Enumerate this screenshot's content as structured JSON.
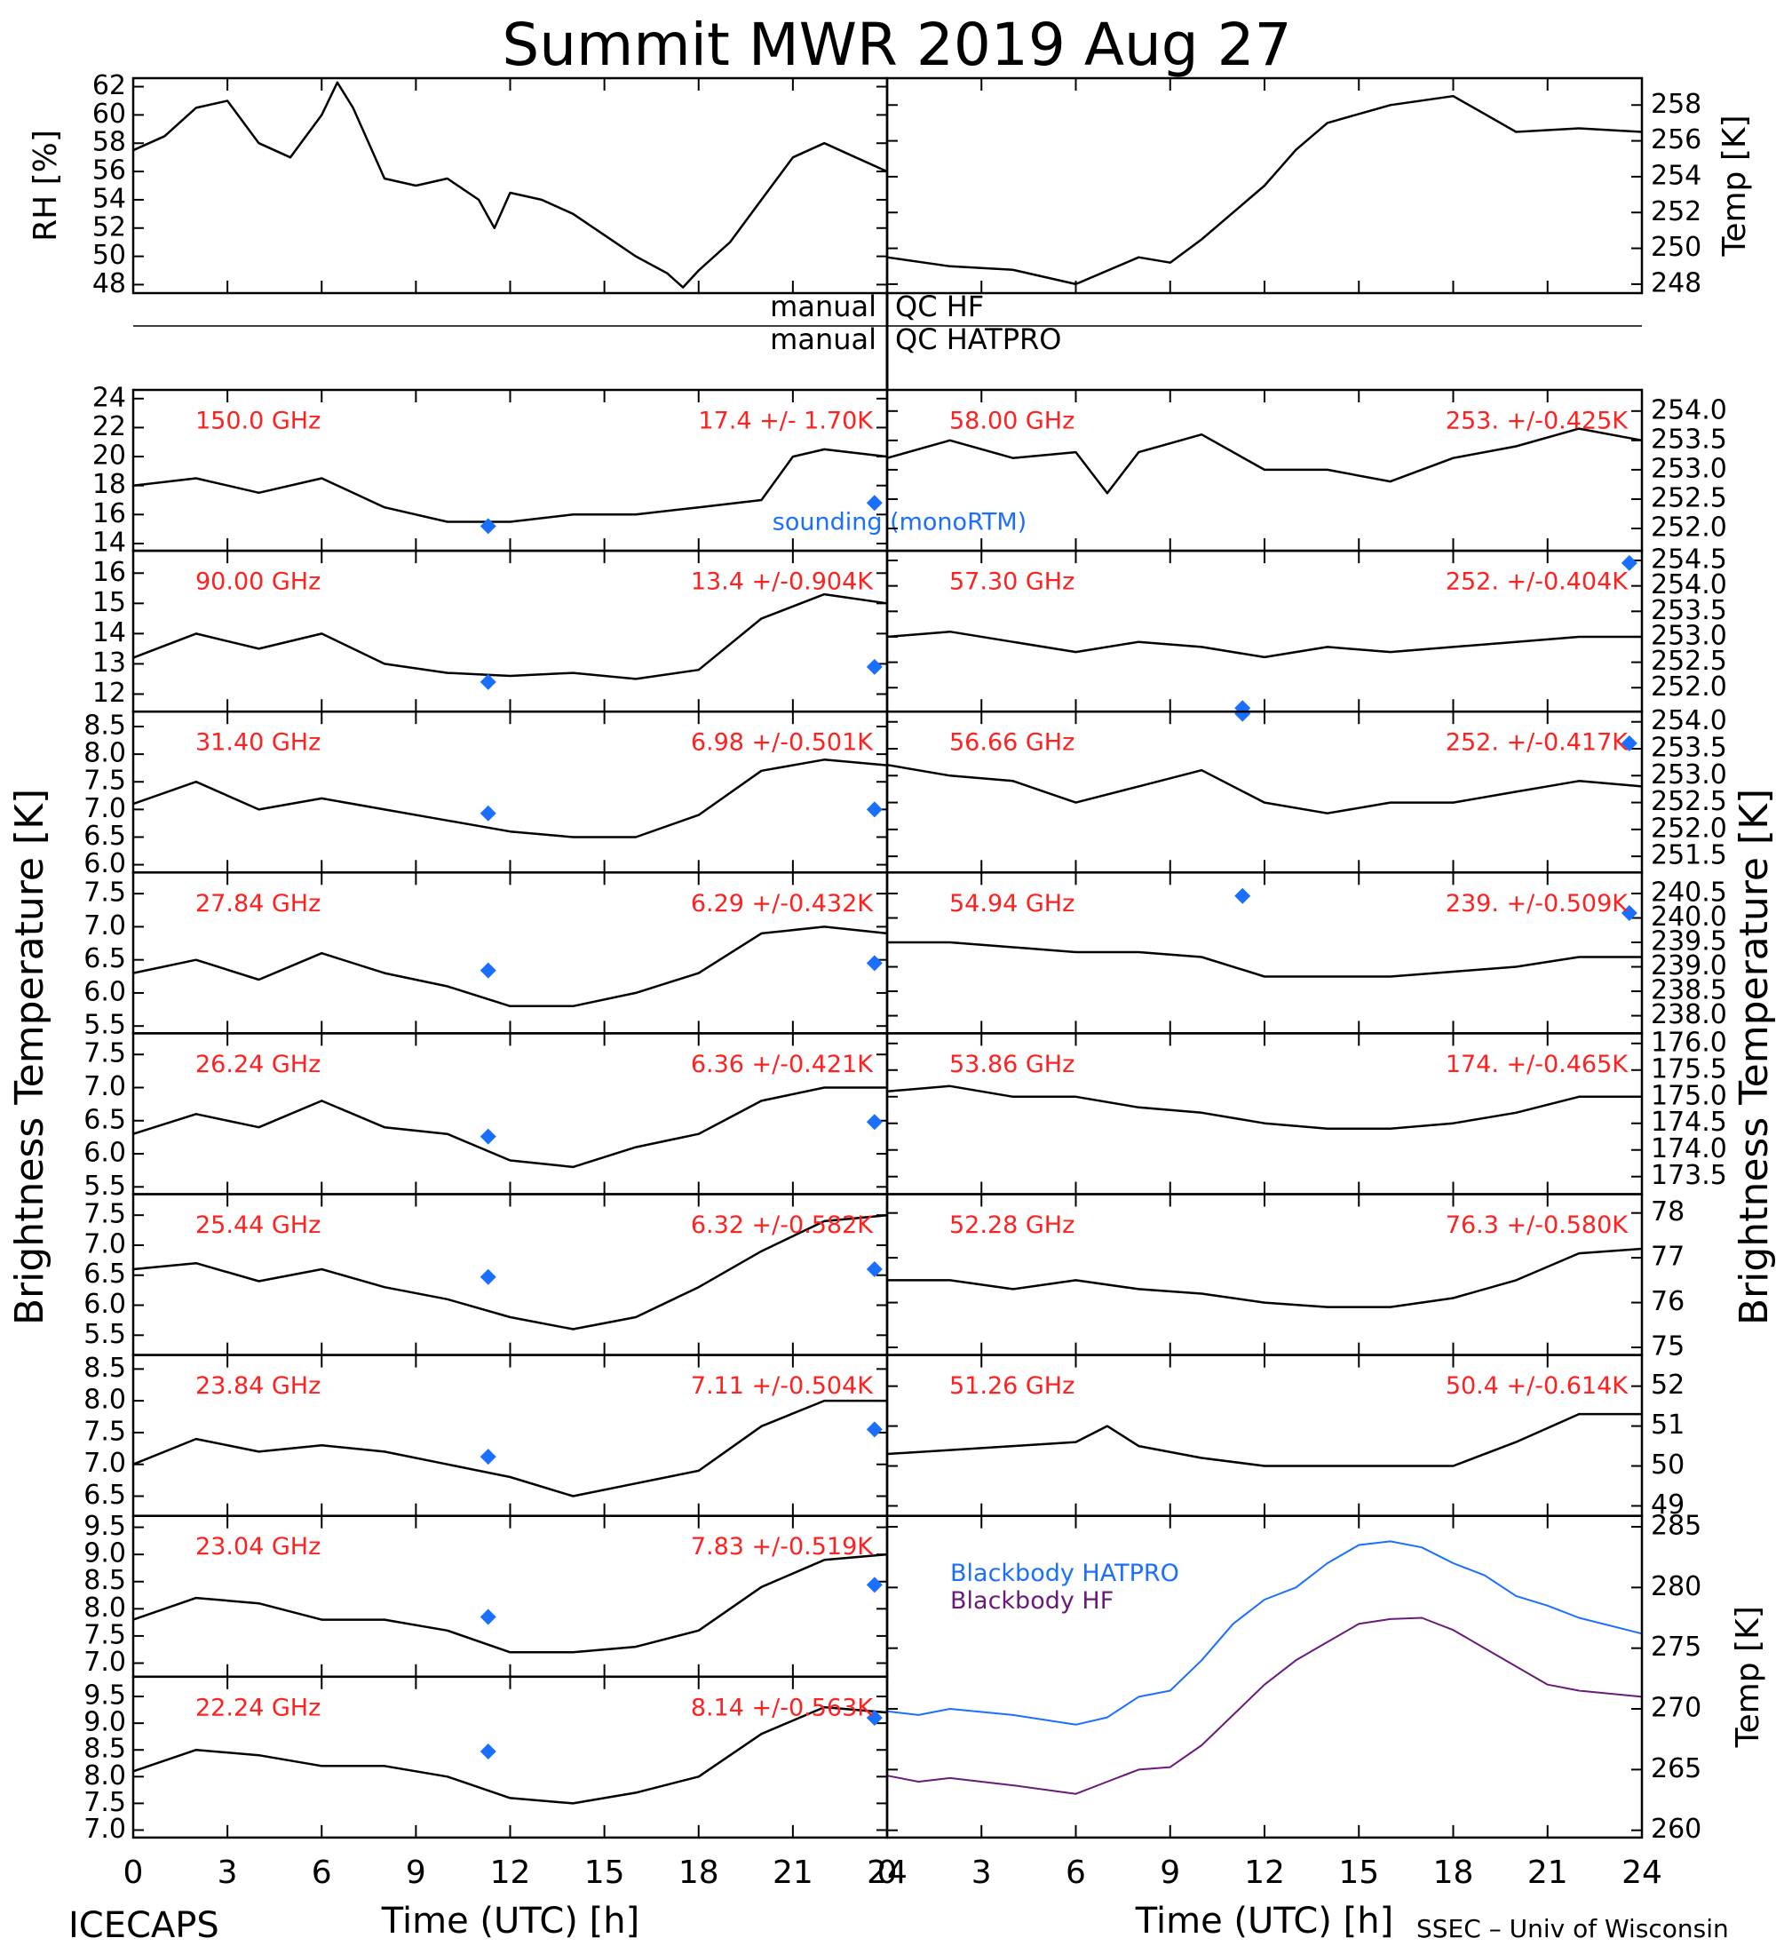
{
  "title": "Summit MWR 2019 Aug 27",
  "footer_left": "ICECAPS",
  "footer_right": "SSEC – Univ of Wisconsin",
  "y_label_left": "Brightness Temperature [K]",
  "y_label_right": "Brightness Temperature [K]",
  "sounding_label": "sounding (monoRTM)",
  "qc": [
    {
      "left": "manual",
      "right": "QC HF"
    },
    {
      "left": "manual",
      "right": "QC HATPRO"
    }
  ],
  "time_axis": {
    "label": "Time (UTC) [h]",
    "xlim": [
      0,
      24
    ],
    "xticks": [
      0,
      3,
      6,
      9,
      12,
      15,
      18,
      21,
      24
    ]
  },
  "chart_data": [
    {
      "type": "line",
      "ylabel": "RH [%]",
      "color": "#000000",
      "ylim": [
        47.4,
        62.6
      ],
      "yticks": [
        48,
        50,
        52,
        54,
        56,
        58,
        60,
        62
      ],
      "x": [
        0,
        1,
        2,
        3,
        4,
        5,
        6,
        6.5,
        7,
        8,
        9,
        10,
        11,
        11.5,
        12,
        13,
        14,
        15,
        16,
        17,
        17.5,
        18,
        19,
        20,
        21,
        22,
        23,
        24
      ],
      "values": [
        57.5,
        58.5,
        60.5,
        61,
        58,
        57,
        60,
        62.3,
        60.5,
        55.5,
        55,
        55.5,
        54,
        52,
        54.5,
        54,
        53,
        51.5,
        50,
        48.8,
        47.8,
        49,
        51,
        54,
        57,
        58,
        57,
        56
      ]
    },
    {
      "type": "line",
      "ylabel": "Temp [K]",
      "color": "#000000",
      "ylim": [
        247.5,
        259.5
      ],
      "yticks": [
        248,
        250,
        252,
        254,
        256,
        258
      ],
      "x": [
        0,
        2,
        4,
        6,
        8,
        9,
        10,
        12,
        13,
        14,
        16,
        18,
        19,
        20,
        22,
        24
      ],
      "values": [
        249.5,
        249,
        248.8,
        248,
        249.5,
        249.2,
        250.5,
        253.5,
        255.5,
        257,
        258,
        258.5,
        257.5,
        256.5,
        256.7,
        256.5
      ]
    },
    {
      "type": "line",
      "channel": "150.0 GHz",
      "annotation": "17.4 +/- 1.70K",
      "color": "#000000",
      "ylim": [
        13.5,
        24.6
      ],
      "yticks": [
        14,
        16,
        18,
        20,
        22,
        24
      ],
      "x": [
        0,
        2,
        4,
        6,
        8,
        10,
        12,
        14,
        16,
        18,
        20,
        21,
        22,
        24
      ],
      "values": [
        18,
        18.5,
        17.5,
        18.5,
        16.5,
        15.5,
        15.5,
        16,
        16,
        16.5,
        17,
        20,
        20.5,
        20
      ],
      "sounding": {
        "color": "#1a6fff",
        "x": [
          11.3,
          23.6
        ],
        "values": [
          15.2,
          16.8
        ]
      }
    },
    {
      "type": "line",
      "channel": "90.00 GHz",
      "annotation": "13.4 +/-0.904K",
      "color": "#000000",
      "ylim": [
        11.42,
        16.74
      ],
      "yticks": [
        12,
        13,
        14,
        15,
        16
      ],
      "x": [
        0,
        2,
        4,
        6,
        8,
        10,
        12,
        14,
        16,
        18,
        20,
        22,
        24
      ],
      "values": [
        13.2,
        14,
        13.5,
        14,
        13,
        12.7,
        12.6,
        12.7,
        12.5,
        12.8,
        14.5,
        15.3,
        15
      ],
      "sounding": {
        "color": "#1a6fff",
        "x": [
          11.3,
          23.6
        ],
        "values": [
          12.4,
          12.9
        ]
      }
    },
    {
      "type": "line",
      "channel": "31.40 GHz",
      "annotation": "6.98 +/-0.501K",
      "color": "#000000",
      "ylim": [
        5.86,
        8.77
      ],
      "yticks": [
        {
          "value": 6,
          "label": "6.0"
        },
        6.5,
        {
          "value": 7,
          "label": "7.0"
        },
        7.5,
        {
          "value": 8,
          "label": "8.0"
        },
        8.5
      ],
      "x": [
        0,
        2,
        4,
        6,
        8,
        10,
        12,
        14,
        16,
        18,
        20,
        22,
        24
      ],
      "values": [
        7.1,
        7.5,
        7.0,
        7.2,
        7.0,
        6.8,
        6.6,
        6.5,
        6.5,
        6.9,
        7.7,
        7.9,
        7.8
      ],
      "sounding": {
        "color": "#1a6fff",
        "x": [
          11.3,
          23.6
        ],
        "values": [
          6.93,
          7.0
        ]
      }
    },
    {
      "type": "line",
      "channel": "27.84 GHz",
      "annotation": "6.29 +/-0.432K",
      "color": "#000000",
      "ylim": [
        5.39,
        7.82
      ],
      "yticks": [
        5.5,
        {
          "value": 6,
          "label": "6.0"
        },
        6.5,
        {
          "value": 7,
          "label": "7.0"
        },
        7.5
      ],
      "x": [
        0,
        2,
        4,
        6,
        8,
        10,
        12,
        14,
        16,
        18,
        20,
        22,
        24
      ],
      "values": [
        6.3,
        6.5,
        6.2,
        6.6,
        6.3,
        6.1,
        5.8,
        5.8,
        6.0,
        6.3,
        6.9,
        7.0,
        6.9
      ],
      "sounding": {
        "color": "#1a6fff",
        "x": [
          11.3,
          23.6
        ],
        "values": [
          6.34,
          6.45
        ]
      }
    },
    {
      "type": "line",
      "channel": "26.24 GHz",
      "annotation": "6.36 +/-0.421K",
      "color": "#000000",
      "ylim": [
        5.39,
        7.82
      ],
      "yticks": [
        5.5,
        {
          "value": 6,
          "label": "6.0"
        },
        6.5,
        {
          "value": 7,
          "label": "7.0"
        },
        7.5
      ],
      "x": [
        0,
        2,
        4,
        6,
        8,
        10,
        12,
        14,
        16,
        18,
        20,
        22,
        24
      ],
      "values": [
        6.3,
        6.6,
        6.4,
        6.8,
        6.4,
        6.3,
        5.9,
        5.8,
        6.1,
        6.3,
        6.8,
        7.0,
        7.0
      ],
      "sounding": {
        "color": "#1a6fff",
        "x": [
          11.3,
          23.6
        ],
        "values": [
          6.26,
          6.48
        ]
      }
    },
    {
      "type": "line",
      "channel": "25.44 GHz",
      "annotation": "6.32 +/-0.582K",
      "color": "#000000",
      "ylim": [
        5.17,
        7.85
      ],
      "yticks": [
        5.5,
        {
          "value": 6,
          "label": "6.0"
        },
        6.5,
        {
          "value": 7,
          "label": "7.0"
        },
        7.5
      ],
      "x": [
        0,
        2,
        4,
        6,
        8,
        10,
        12,
        14,
        16,
        18,
        20,
        22,
        24
      ],
      "values": [
        6.6,
        6.7,
        6.4,
        6.6,
        6.3,
        6.1,
        5.8,
        5.6,
        5.8,
        6.3,
        6.9,
        7.4,
        7.5
      ],
      "sounding": {
        "color": "#1a6fff",
        "x": [
          11.3,
          23.6
        ],
        "values": [
          6.47,
          6.6
        ]
      }
    },
    {
      "type": "line",
      "channel": "23.84 GHz",
      "annotation": "7.11 +/-0.504K",
      "color": "#000000",
      "ylim": [
        6.19,
        8.72
      ],
      "yticks": [
        6.5,
        {
          "value": 7,
          "label": "7.0"
        },
        7.5,
        {
          "value": 8,
          "label": "8.0"
        },
        8.5
      ],
      "x": [
        0,
        2,
        4,
        6,
        8,
        10,
        12,
        14,
        16,
        18,
        20,
        22,
        24
      ],
      "values": [
        7.0,
        7.4,
        7.2,
        7.3,
        7.2,
        7.0,
        6.8,
        6.5,
        6.7,
        6.9,
        7.6,
        8.0,
        8.0
      ],
      "sounding": {
        "color": "#1a6fff",
        "x": [
          11.3,
          23.6
        ],
        "values": [
          7.12,
          7.55
        ]
      }
    },
    {
      "type": "line",
      "channel": "23.04 GHz",
      "annotation": "7.83 +/-0.519K",
      "color": "#000000",
      "ylim": [
        6.75,
        9.71
      ],
      "yticks": [
        {
          "value": 7,
          "label": "7.0"
        },
        7.5,
        {
          "value": 8,
          "label": "8.0"
        },
        8.5,
        {
          "value": 9,
          "label": "9.0"
        },
        9.5
      ],
      "x": [
        0,
        2,
        4,
        6,
        8,
        10,
        12,
        14,
        16,
        18,
        20,
        22,
        24
      ],
      "values": [
        7.8,
        8.2,
        8.1,
        7.8,
        7.8,
        7.6,
        7.2,
        7.2,
        7.3,
        7.6,
        8.4,
        8.9,
        9.0
      ],
      "sounding": {
        "color": "#1a6fff",
        "x": [
          11.3,
          23.6
        ],
        "values": [
          7.85,
          8.44
        ]
      }
    },
    {
      "type": "line",
      "channel": "22.24 GHz",
      "annotation": "8.14 +/-0.563K",
      "color": "#000000",
      "ylim": [
        6.86,
        9.87
      ],
      "yticks": [
        {
          "value": 7,
          "label": "7.0"
        },
        7.5,
        {
          "value": 8,
          "label": "8.0"
        },
        8.5,
        {
          "value": 9,
          "label": "9.0"
        },
        9.5
      ],
      "x": [
        0,
        2,
        4,
        6,
        8,
        10,
        12,
        14,
        16,
        18,
        20,
        22,
        24
      ],
      "values": [
        8.1,
        8.5,
        8.4,
        8.2,
        8.2,
        8.0,
        7.6,
        7.5,
        7.7,
        8.0,
        8.8,
        9.3,
        9.2
      ],
      "sounding": {
        "color": "#1a6fff",
        "x": [
          11.3,
          23.6
        ],
        "values": [
          8.47,
          9.1
        ]
      }
    },
    {
      "type": "line",
      "channel": "58.00 GHz",
      "annotation": "253. +/-0.425K",
      "color": "#000000",
      "ylim": [
        251.62,
        254.36
      ],
      "yticks": [
        {
          "value": 252,
          "label": "252.0"
        },
        252.5,
        {
          "value": 253,
          "label": "253.0"
        },
        253.5,
        {
          "value": 254,
          "label": "254.0"
        }
      ],
      "x": [
        0,
        2,
        4,
        6,
        7,
        8,
        10,
        12,
        14,
        16,
        18,
        20,
        22,
        24
      ],
      "values": [
        253.2,
        253.5,
        253.2,
        253.3,
        252.6,
        253.3,
        253.6,
        253,
        253,
        252.8,
        253.2,
        253.4,
        253.7,
        253.5
      ]
    },
    {
      "type": "line",
      "channel": "57.30 GHz",
      "annotation": "252. +/-0.404K",
      "color": "#000000",
      "ylim": [
        251.53,
        254.69
      ],
      "yticks": [
        {
          "value": 252,
          "label": "252.0"
        },
        252.5,
        {
          "value": 253,
          "label": "253.0"
        },
        253.5,
        {
          "value": 254,
          "label": "254.0"
        },
        254.5
      ],
      "x": [
        0,
        2,
        4,
        6,
        8,
        10,
        12,
        14,
        16,
        18,
        20,
        22,
        24
      ],
      "values": [
        253,
        253.1,
        252.9,
        252.7,
        252.9,
        252.8,
        252.6,
        252.8,
        252.7,
        252.8,
        252.9,
        253,
        253
      ],
      "sounding": {
        "color": "#1a6fff",
        "x": [
          11.3,
          23.6
        ],
        "values": [
          251.6,
          254.45
        ]
      }
    },
    {
      "type": "line",
      "channel": "56.66 GHz",
      "annotation": "252. +/-0.417K",
      "color": "#000000",
      "ylim": [
        251.2,
        254.19
      ],
      "yticks": [
        251.5,
        {
          "value": 252,
          "label": "252.0"
        },
        252.5,
        {
          "value": 253,
          "label": "253.0"
        },
        253.5,
        {
          "value": 254,
          "label": "254.0"
        }
      ],
      "x": [
        0,
        2,
        4,
        6,
        8,
        10,
        12,
        14,
        16,
        18,
        20,
        22,
        24
      ],
      "values": [
        253.2,
        253,
        252.9,
        252.5,
        252.8,
        253.1,
        252.5,
        252.3,
        252.5,
        252.5,
        252.7,
        252.9,
        252.8
      ],
      "sounding": {
        "color": "#1a6fff",
        "x": [
          11.3,
          23.6
        ],
        "values": [
          254.15,
          253.6
        ]
      }
    },
    {
      "type": "line",
      "channel": "54.94 GHz",
      "annotation": "239. +/-0.509K",
      "color": "#000000",
      "ylim": [
        237.64,
        240.93
      ],
      "yticks": [
        {
          "value": 238,
          "label": "238.0"
        },
        238.5,
        {
          "value": 239,
          "label": "239.0"
        },
        239.5,
        {
          "value": 240,
          "label": "240.0"
        },
        240.5
      ],
      "x": [
        0,
        2,
        4,
        6,
        8,
        10,
        12,
        14,
        16,
        18,
        20,
        22,
        24
      ],
      "values": [
        239.5,
        239.5,
        239.4,
        239.3,
        239.3,
        239.2,
        238.8,
        238.8,
        238.8,
        238.9,
        239,
        239.2,
        239.2
      ],
      "sounding": {
        "color": "#1a6fff",
        "x": [
          11.3,
          23.6
        ],
        "values": [
          240.45,
          240.1
        ]
      }
    },
    {
      "type": "line",
      "channel": "53.86 GHz",
      "annotation": "174. +/-0.465K",
      "color": "#000000",
      "ylim": [
        173.17,
        176.19
      ],
      "yticks": [
        173.5,
        {
          "value": 174,
          "label": "174.0"
        },
        174.5,
        {
          "value": 175,
          "label": "175.0"
        },
        175.5,
        {
          "value": 176,
          "label": "176.0"
        }
      ],
      "x": [
        0,
        2,
        4,
        6,
        8,
        10,
        12,
        14,
        16,
        18,
        20,
        22,
        24
      ],
      "values": [
        175.1,
        175.2,
        175,
        175,
        174.8,
        174.7,
        174.5,
        174.4,
        174.4,
        174.5,
        174.7,
        175,
        175
      ]
    },
    {
      "type": "line",
      "channel": "52.28 GHz",
      "annotation": "76.3 +/-0.580K",
      "color": "#000000",
      "ylim": [
        74.83,
        78.42
      ],
      "yticks": [
        75,
        76,
        77,
        78
      ],
      "x": [
        0,
        2,
        4,
        6,
        8,
        10,
        12,
        14,
        16,
        18,
        20,
        22,
        24
      ],
      "values": [
        76.5,
        76.5,
        76.3,
        76.5,
        76.3,
        76.2,
        76,
        75.9,
        75.9,
        76.1,
        76.5,
        77.1,
        77.2
      ]
    },
    {
      "type": "line",
      "channel": "51.26 GHz",
      "annotation": "50.4 +/-0.614K",
      "color": "#000000",
      "ylim": [
        48.75,
        52.78
      ],
      "yticks": [
        49,
        50,
        51,
        52
      ],
      "x": [
        0,
        2,
        4,
        6,
        7,
        8,
        10,
        12,
        14,
        16,
        18,
        20,
        22,
        24
      ],
      "values": [
        50.3,
        50.4,
        50.5,
        50.6,
        51.0,
        50.5,
        50.2,
        50,
        50,
        50,
        50,
        50.6,
        51.3,
        51.3
      ]
    },
    {
      "type": "line",
      "ylabel": "Temp [K]",
      "ylim": [
        259.4,
        285.9
      ],
      "yticks": [
        260,
        265,
        270,
        275,
        280,
        285
      ],
      "x": [
        0,
        1,
        2,
        4,
        6,
        7,
        8,
        9,
        10,
        11,
        12,
        13,
        14,
        15,
        16,
        17,
        18,
        19,
        20,
        21,
        22,
        24
      ],
      "series": [
        {
          "name": "Blackbody HATPRO",
          "color": "#1a6fff",
          "values": [
            269.8,
            269.5,
            270,
            269.5,
            268.7,
            269.3,
            271,
            271.5,
            274,
            277,
            279,
            280,
            282,
            283.5,
            283.8,
            283.3,
            282,
            281,
            279.3,
            278.5,
            277.5,
            276.2
          ]
        },
        {
          "name": "Blackbody HF",
          "color": "#6a1b7a",
          "values": [
            264.5,
            264,
            264.3,
            263.7,
            263,
            264,
            265,
            265.2,
            267,
            269.5,
            272,
            274,
            275.5,
            277,
            277.4,
            277.5,
            276.5,
            275,
            273.5,
            272,
            271.5,
            271
          ]
        }
      ]
    }
  ]
}
